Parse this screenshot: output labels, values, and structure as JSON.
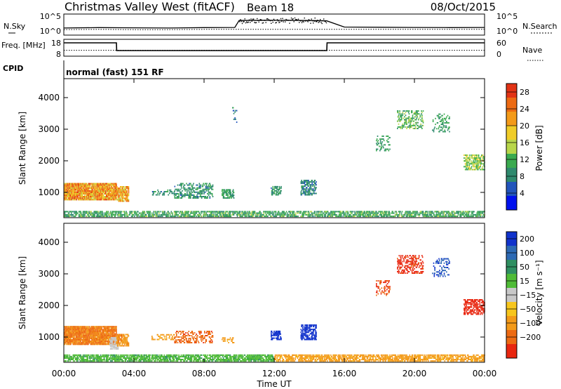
{
  "header": {
    "title": "Christmas Valley West (fitACF)",
    "beam": "Beam 18",
    "date": "08/Oct/2015"
  },
  "chart_data": [
    {
      "type": "line",
      "panel": "noise",
      "left_label": "N.Sky",
      "right_label": "N.Search",
      "left_ticks": [
        "10^5",
        "10^0"
      ],
      "right_ticks": [
        "10^5",
        "10^0"
      ],
      "scale": "log",
      "x": [
        "00:00",
        "02:00",
        "04:00",
        "06:00",
        "08:00",
        "09:45",
        "10:00",
        "12:00",
        "14:00",
        "15:00",
        "16:00",
        "18:00",
        "20:00",
        "22:00",
        "24:00"
      ],
      "n_sky": [
        30,
        40,
        35,
        30,
        40,
        45,
        5000,
        6000,
        5000,
        4000,
        60,
        50,
        45,
        40,
        45
      ],
      "n_search": [
        10,
        12,
        10,
        10,
        12,
        12,
        12,
        12,
        12,
        12,
        12,
        12,
        12,
        12,
        12
      ]
    },
    {
      "type": "line",
      "panel": "frequency",
      "left_label": "Freq. [MHz]",
      "right_label": "Nave",
      "left_ticks": [
        "18",
        "8"
      ],
      "right_ticks": [
        "60",
        "0"
      ],
      "ylim": [
        8,
        18
      ],
      "x": [
        "00:00",
        "03:00",
        "03:01",
        "15:00",
        "15:01",
        "24:00"
      ],
      "freq_mhz": [
        16.2,
        16.2,
        11.2,
        11.2,
        16.2,
        16.2
      ],
      "nave_level": 20
    },
    {
      "type": "table",
      "panel": "cpid",
      "label": "CPID",
      "text": "normal (fast) 151 RF"
    },
    {
      "type": "heatmap",
      "panel": "power",
      "ylabel": "Slant Range [km]",
      "y_ticks": [
        "1000",
        "2000",
        "3000",
        "4000"
      ],
      "ylim": [
        200,
        4600
      ],
      "colorbar_label": "Power [dB]",
      "colorbar_ticks": [
        "4",
        "8",
        "12",
        "16",
        "20",
        "24",
        "28"
      ],
      "colorbar_range": [
        0,
        30
      ],
      "colors": [
        "#0011ee",
        "#2255bb",
        "#2f8a6e",
        "#3aaa4f",
        "#b8d64a",
        "#f0cc28",
        "#f39a19",
        "#ed6a12",
        "#e23315"
      ],
      "regions": [
        {
          "t0": 0.0,
          "t1": 3.0,
          "r0": 750,
          "r1": 1300,
          "v": 22,
          "density": 0.85
        },
        {
          "t0": 3.0,
          "t1": 3.7,
          "r0": 700,
          "r1": 1200,
          "v": 20,
          "density": 0.7
        },
        {
          "t0": 5.0,
          "t1": 6.3,
          "r0": 900,
          "r1": 1100,
          "v": 8,
          "density": 0.3
        },
        {
          "t0": 6.3,
          "t1": 8.5,
          "r0": 800,
          "r1": 1300,
          "v": 9,
          "density": 0.35
        },
        {
          "t0": 9.0,
          "t1": 9.7,
          "r0": 800,
          "r1": 1100,
          "v": 10,
          "density": 0.4
        },
        {
          "t0": 9.6,
          "t1": 9.9,
          "r0": 3200,
          "r1": 3700,
          "v": 8,
          "density": 0.15
        },
        {
          "t0": 11.8,
          "t1": 12.4,
          "r0": 900,
          "r1": 1200,
          "v": 9,
          "density": 0.4
        },
        {
          "t0": 13.5,
          "t1": 14.4,
          "r0": 900,
          "r1": 1400,
          "v": 8,
          "density": 0.5
        },
        {
          "t0": 17.8,
          "t1": 18.6,
          "r0": 2300,
          "r1": 2800,
          "v": 10,
          "density": 0.2
        },
        {
          "t0": 19.0,
          "t1": 20.5,
          "r0": 3000,
          "r1": 3600,
          "v": 12,
          "density": 0.3
        },
        {
          "t0": 21.0,
          "t1": 22.0,
          "r0": 2900,
          "r1": 3500,
          "v": 10,
          "density": 0.2
        },
        {
          "t0": 22.8,
          "t1": 24.0,
          "r0": 1700,
          "r1": 2200,
          "v": 14,
          "density": 0.45
        },
        {
          "t0": 0.0,
          "t1": 24.0,
          "r0": 220,
          "r1": 420,
          "v": 11,
          "density": 0.55
        }
      ]
    },
    {
      "type": "heatmap",
      "panel": "velocity",
      "ylabel": "Slant Range [km]",
      "y_ticks": [
        "1000",
        "2000",
        "3000",
        "4000"
      ],
      "ylim": [
        200,
        4600
      ],
      "xlabel": "Time UT",
      "x_ticks": [
        "00:00",
        "04:00",
        "08:00",
        "12:00",
        "16:00",
        "20:00",
        "00:00"
      ],
      "xlim": [
        0,
        24
      ],
      "colorbar_label": "Velocity [m s⁻¹]",
      "colorbar_ticks": [
        "200",
        "100",
        "50",
        "15",
        "−15",
        "−50",
        "−100",
        "−200"
      ],
      "colors": [
        "#1133cc",
        "#2d6ab4",
        "#2f8f61",
        "#4fbb36",
        "#c8c8c8",
        "#f7c61d",
        "#f39a19",
        "#ed6a12",
        "#e8260f"
      ],
      "regions": [
        {
          "t0": 0.0,
          "t1": 3.0,
          "r0": 750,
          "r1": 1350,
          "v": -80,
          "density": 0.85
        },
        {
          "t0": 2.6,
          "t1": 3.1,
          "r0": 600,
          "r1": 1000,
          "v": 0,
          "density": 0.6
        },
        {
          "t0": 3.0,
          "t1": 3.7,
          "r0": 700,
          "r1": 1100,
          "v": -60,
          "density": 0.6
        },
        {
          "t0": 5.0,
          "t1": 6.3,
          "r0": 900,
          "r1": 1100,
          "v": -40,
          "density": 0.3
        },
        {
          "t0": 6.3,
          "t1": 8.5,
          "r0": 800,
          "r1": 1200,
          "v": -120,
          "density": 0.3
        },
        {
          "t0": 9.0,
          "t1": 9.7,
          "r0": 800,
          "r1": 1000,
          "v": -40,
          "density": 0.4
        },
        {
          "t0": 11.8,
          "t1": 12.4,
          "r0": 900,
          "r1": 1200,
          "v": 220,
          "density": 0.5
        },
        {
          "t0": 13.5,
          "t1": 14.4,
          "r0": 900,
          "r1": 1400,
          "v": 220,
          "density": 0.5
        },
        {
          "t0": 17.8,
          "t1": 18.6,
          "r0": 2300,
          "r1": 2800,
          "v": -150,
          "density": 0.2
        },
        {
          "t0": 19.0,
          "t1": 20.5,
          "r0": 3000,
          "r1": 3600,
          "v": -200,
          "density": 0.3
        },
        {
          "t0": 21.0,
          "t1": 22.0,
          "r0": 2900,
          "r1": 3500,
          "v": 150,
          "density": 0.2
        },
        {
          "t0": 22.8,
          "t1": 24.0,
          "r0": 1700,
          "r1": 2200,
          "v": -220,
          "density": 0.45
        },
        {
          "t0": 0.0,
          "t1": 12.0,
          "r0": 220,
          "r1": 450,
          "v": 25,
          "density": 0.6
        },
        {
          "t0": 12.0,
          "t1": 24.0,
          "r0": 220,
          "r1": 450,
          "v": -40,
          "density": 0.55
        }
      ]
    }
  ]
}
